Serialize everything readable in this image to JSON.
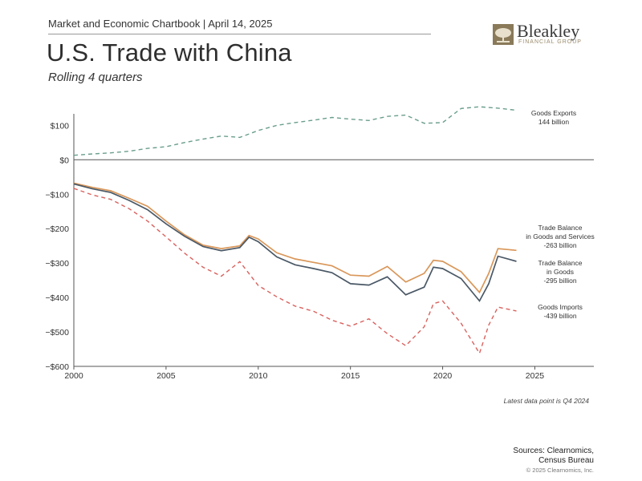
{
  "header": {
    "chartbook": "Market and Economic Chartbook | April 14, 2025",
    "title": "U.S. Trade with China",
    "subtitle": "Rolling 4 quarters"
  },
  "logo": {
    "name": "Bleakley",
    "tagline": "FINANCIAL GROUP"
  },
  "footer": {
    "note": "Latest data point is Q4 2024",
    "sources_line1": "Sources: Clearnomics,",
    "sources_line2": "Census Bureau",
    "copyright": "© 2025 Clearnomics, Inc."
  },
  "colors": {
    "exports": "#6a9e8c",
    "balance_services": "#d9975a",
    "balance_goods": "#4a5866",
    "imports": "#d8625e",
    "axis": "#555555"
  },
  "chart_data": {
    "type": "line",
    "title": "U.S. Trade with China",
    "subtitle": "Rolling 4 quarters",
    "xlim": [
      2000,
      2028.2
    ],
    "ylim": [
      -600,
      180
    ],
    "x_ticks": [
      2000,
      2005,
      2010,
      2015,
      2020,
      2025
    ],
    "y_ticks": [
      {
        "v": 100,
        "label": "$100"
      },
      {
        "v": 0,
        "label": "$0"
      },
      {
        "v": -100,
        "label": "−$100"
      },
      {
        "v": -200,
        "label": "−$200"
      },
      {
        "v": -300,
        "label": "−$300"
      },
      {
        "v": -400,
        "label": "−$400"
      },
      {
        "v": -500,
        "label": "−$500"
      },
      {
        "v": -600,
        "label": "−$600"
      }
    ],
    "series": [
      {
        "name": "Goods Exports",
        "label_lines": [
          "Goods Exports",
          "144 billion"
        ],
        "style": "dashed",
        "color_key": "exports",
        "points": [
          [
            2000,
            13
          ],
          [
            2001,
            17
          ],
          [
            2002,
            20
          ],
          [
            2003,
            25
          ],
          [
            2004,
            33
          ],
          [
            2005,
            38
          ],
          [
            2006,
            50
          ],
          [
            2007,
            60
          ],
          [
            2008,
            69
          ],
          [
            2009,
            65
          ],
          [
            2010,
            85
          ],
          [
            2011,
            100
          ],
          [
            2012,
            108
          ],
          [
            2013,
            115
          ],
          [
            2014,
            123
          ],
          [
            2015,
            118
          ],
          [
            2016,
            114
          ],
          [
            2017,
            126
          ],
          [
            2018,
            130
          ],
          [
            2019,
            106
          ],
          [
            2020,
            108
          ],
          [
            2021,
            149
          ],
          [
            2022,
            154
          ],
          [
            2023,
            150
          ],
          [
            2024,
            144
          ]
        ]
      },
      {
        "name": "Trade Balance in Goods and Services",
        "label_lines": [
          "Trade Balance",
          "in Goods and Services",
          "-263 billion"
        ],
        "style": "solid",
        "color_key": "balance_services",
        "points": [
          [
            2000,
            -68
          ],
          [
            2001,
            -80
          ],
          [
            2002,
            -90
          ],
          [
            2003,
            -112
          ],
          [
            2004,
            -135
          ],
          [
            2005,
            -178
          ],
          [
            2006,
            -218
          ],
          [
            2007,
            -248
          ],
          [
            2008,
            -258
          ],
          [
            2009,
            -250
          ],
          [
            2009.5,
            -220
          ],
          [
            2010,
            -230
          ],
          [
            2011,
            -270
          ],
          [
            2012,
            -288
          ],
          [
            2013,
            -298
          ],
          [
            2014,
            -308
          ],
          [
            2015,
            -335
          ],
          [
            2016,
            -338
          ],
          [
            2017,
            -310
          ],
          [
            2018,
            -355
          ],
          [
            2019,
            -330
          ],
          [
            2019.5,
            -292
          ],
          [
            2020,
            -295
          ],
          [
            2021,
            -325
          ],
          [
            2022,
            -385
          ],
          [
            2022.5,
            -330
          ],
          [
            2023,
            -258
          ],
          [
            2024,
            -263
          ]
        ]
      },
      {
        "name": "Trade Balance in Goods",
        "label_lines": [
          "Trade Balance",
          "in Goods",
          "-295 billion"
        ],
        "style": "solid",
        "color_key": "balance_goods",
        "points": [
          [
            2000,
            -70
          ],
          [
            2001,
            -84
          ],
          [
            2002,
            -95
          ],
          [
            2003,
            -118
          ],
          [
            2004,
            -145
          ],
          [
            2005,
            -186
          ],
          [
            2006,
            -222
          ],
          [
            2007,
            -252
          ],
          [
            2008,
            -264
          ],
          [
            2009,
            -255
          ],
          [
            2009.5,
            -225
          ],
          [
            2010,
            -238
          ],
          [
            2011,
            -282
          ],
          [
            2012,
            -305
          ],
          [
            2013,
            -316
          ],
          [
            2014,
            -328
          ],
          [
            2015,
            -360
          ],
          [
            2016,
            -364
          ],
          [
            2017,
            -340
          ],
          [
            2018,
            -392
          ],
          [
            2019,
            -370
          ],
          [
            2019.5,
            -312
          ],
          [
            2020,
            -316
          ],
          [
            2021,
            -345
          ],
          [
            2022,
            -410
          ],
          [
            2022.5,
            -360
          ],
          [
            2023,
            -280
          ],
          [
            2024,
            -295
          ]
        ]
      },
      {
        "name": "Goods Imports",
        "label_lines": [
          "Goods Imports",
          "-439 billion"
        ],
        "style": "dashed",
        "color_key": "imports",
        "points": [
          [
            2000,
            -83
          ],
          [
            2001,
            -102
          ],
          [
            2002,
            -115
          ],
          [
            2003,
            -142
          ],
          [
            2004,
            -178
          ],
          [
            2005,
            -224
          ],
          [
            2006,
            -271
          ],
          [
            2007,
            -312
          ],
          [
            2008,
            -338
          ],
          [
            2009,
            -296
          ],
          [
            2010,
            -365
          ],
          [
            2011,
            -398
          ],
          [
            2012,
            -425
          ],
          [
            2013,
            -440
          ],
          [
            2014,
            -466
          ],
          [
            2015,
            -483
          ],
          [
            2016,
            -462
          ],
          [
            2017,
            -505
          ],
          [
            2018,
            -540
          ],
          [
            2019,
            -485
          ],
          [
            2019.5,
            -418
          ],
          [
            2020,
            -410
          ],
          [
            2021,
            -475
          ],
          [
            2022,
            -562
          ],
          [
            2022.5,
            -480
          ],
          [
            2023,
            -428
          ],
          [
            2024,
            -439
          ]
        ]
      }
    ]
  }
}
